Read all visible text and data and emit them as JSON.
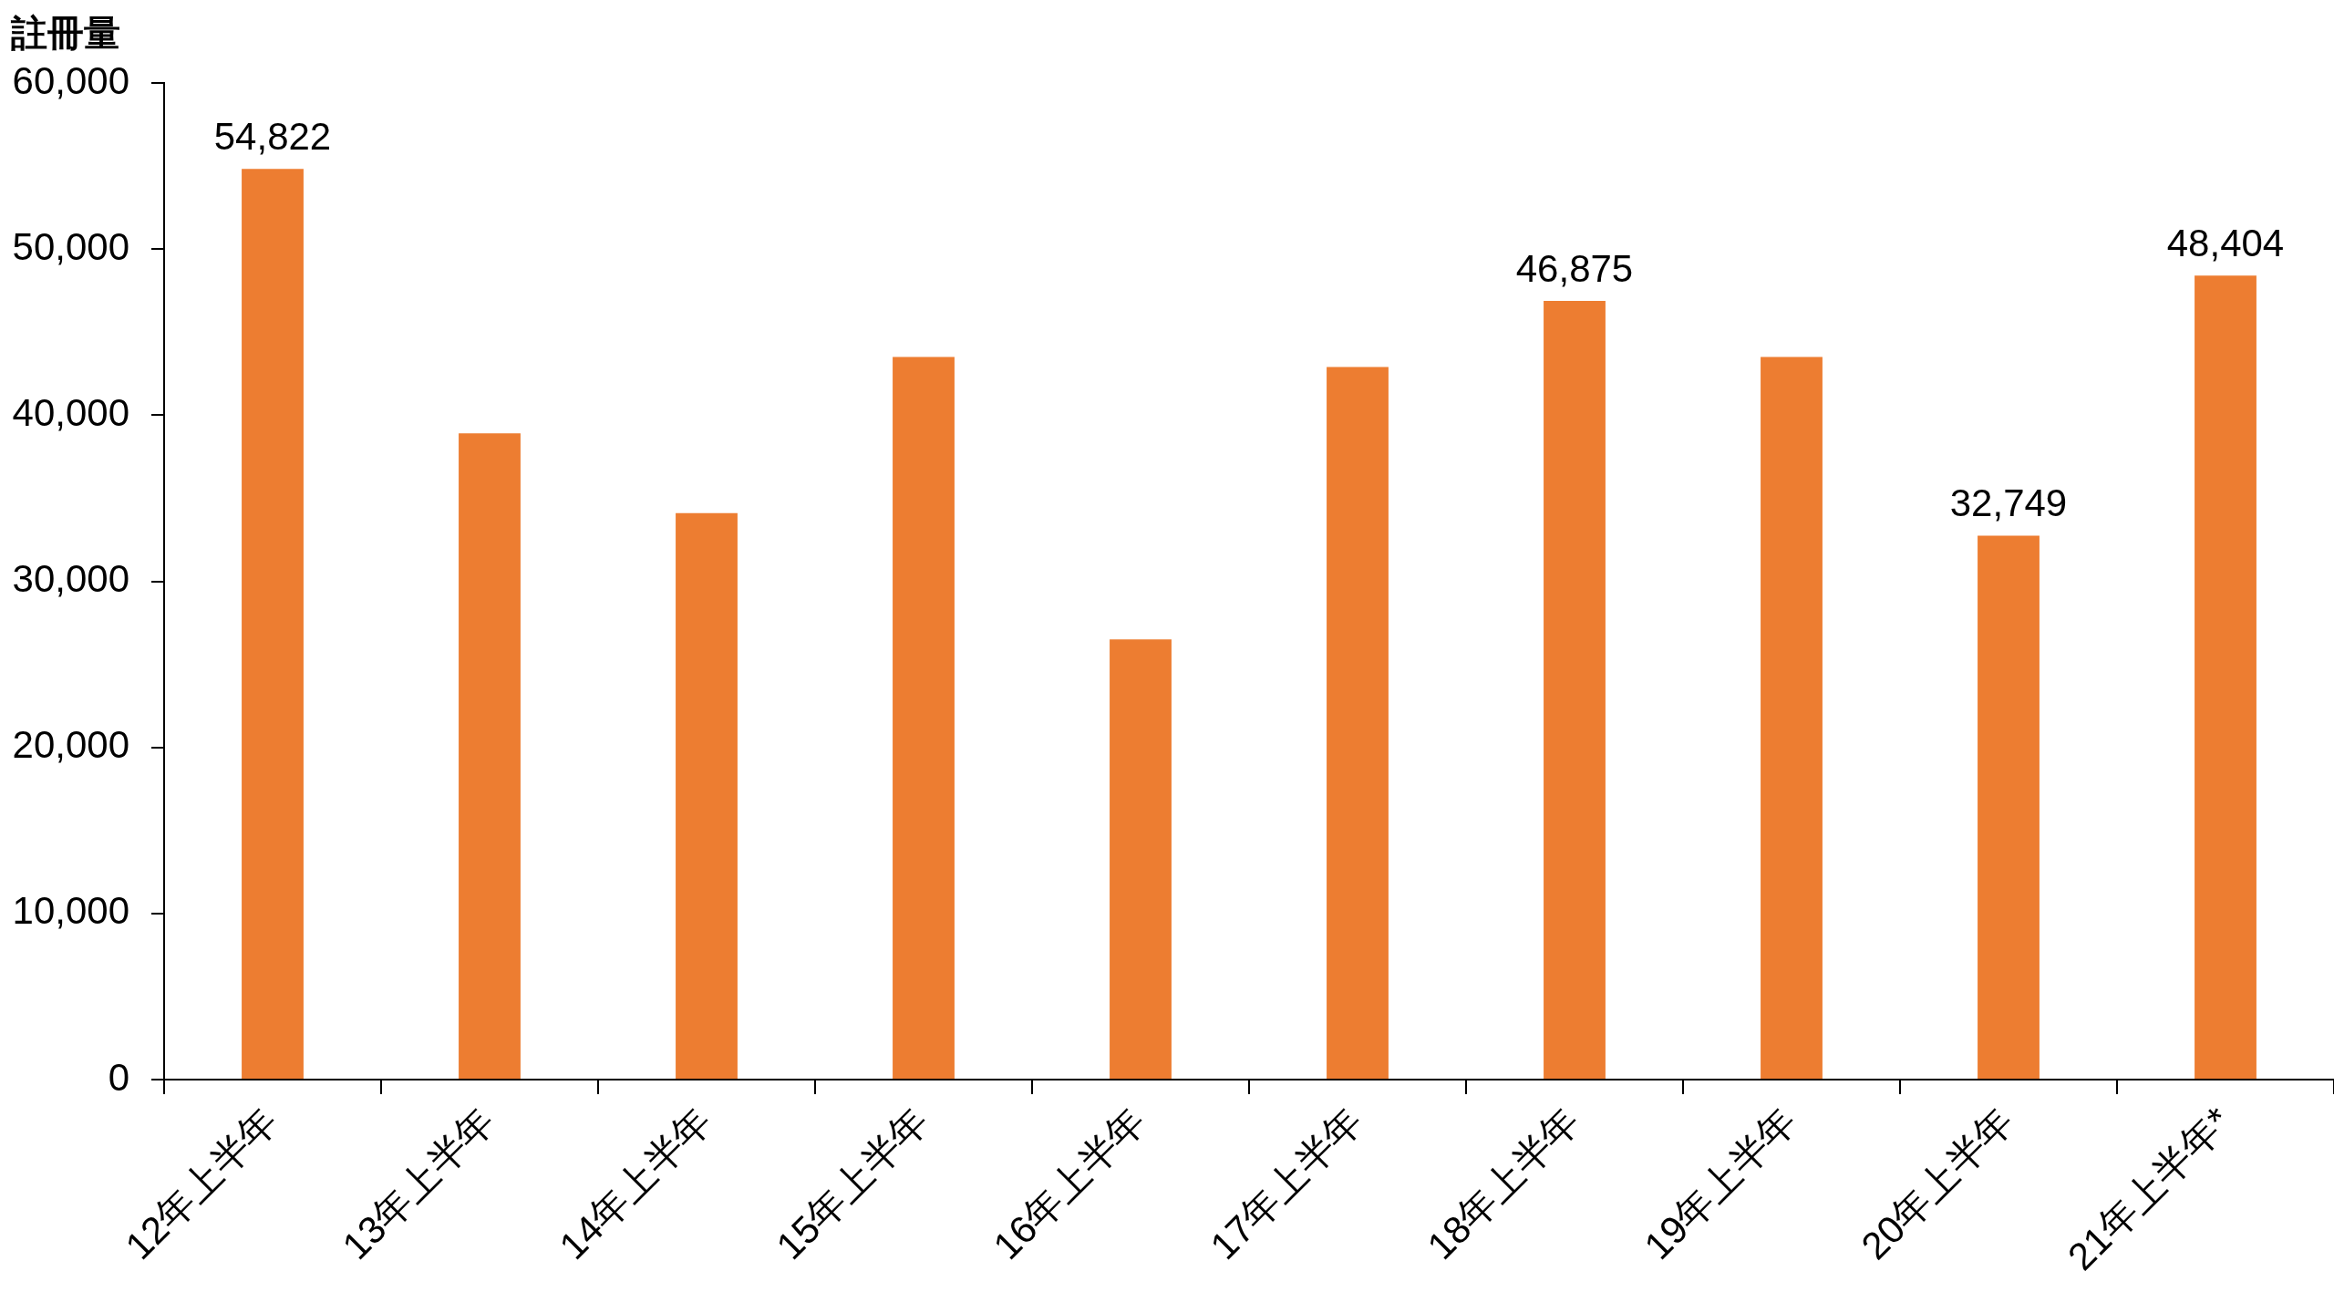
{
  "chart_data": {
    "type": "bar",
    "ylabel": "註冊量",
    "categories": [
      "12年上半年",
      "13年上半年",
      "14年上半年",
      "15年上半年",
      "16年上半年",
      "17年上半年",
      "18年上半年",
      "19年上半年",
      "20年上半年",
      "21年上半年*"
    ],
    "values": [
      54822,
      38900,
      34100,
      43500,
      26500,
      42900,
      46875,
      43500,
      32749,
      48404
    ],
    "value_labels": [
      "54,822",
      null,
      null,
      null,
      null,
      null,
      "46,875",
      null,
      "32,749",
      "48,404"
    ],
    "color": "#ed7d31",
    "ylim": [
      0,
      60000
    ],
    "yticks": [
      0,
      {
        "value": 10000,
        "label": "10,000"
      },
      {
        "value": 20000,
        "label": "20,000"
      },
      {
        "value": 30000,
        "label": "30,000"
      },
      {
        "value": 40000,
        "label": "40,000"
      },
      {
        "value": 50000,
        "label": "50,000"
      },
      {
        "value": 60000,
        "label": "60,000"
      }
    ],
    "grid": false,
    "legend": false
  }
}
